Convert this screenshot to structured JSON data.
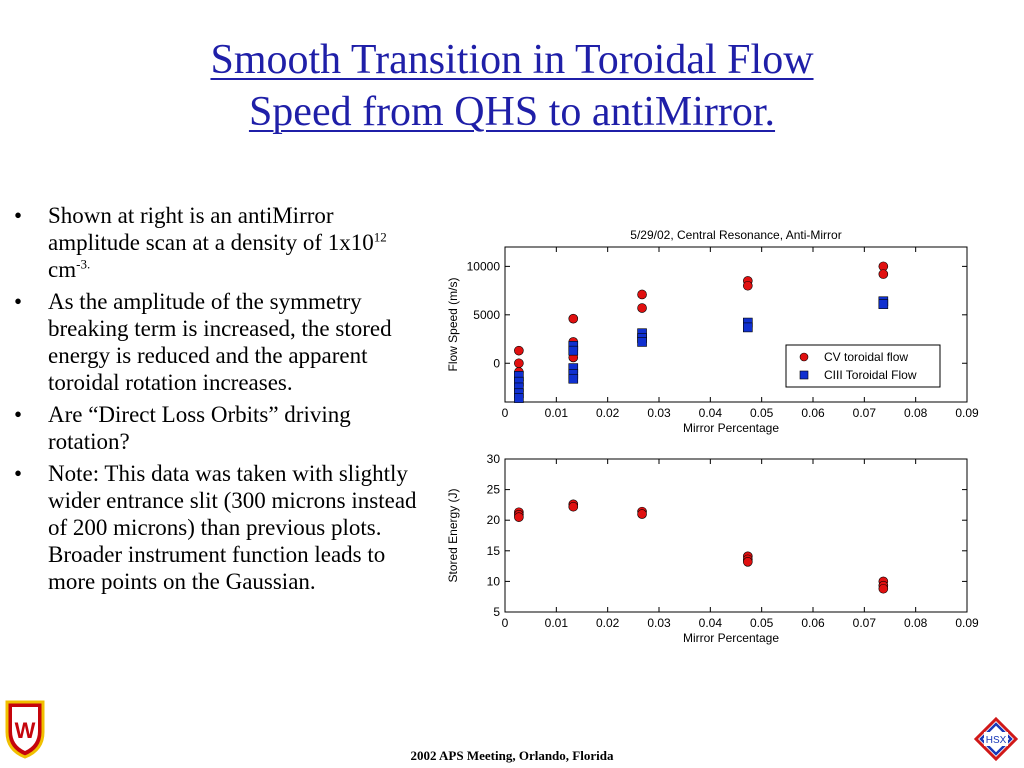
{
  "title": {
    "line1": "Smooth Transition in Toroidal Flow",
    "line2": "Speed from QHS to antiMirror."
  },
  "bullets": [
    {
      "text_before": "Shown at right is an antiMirror amplitude scan at a density of 1x10",
      "sup1": "12",
      "text_mid": " cm",
      "sup2": "-3."
    },
    {
      "text": "As the amplitude of the symmetry breaking term is increased, the stored energy is reduced and the apparent toroidal rotation increases."
    },
    {
      "text": "Are “Direct Loss Orbits” driving rotation?"
    },
    {
      "text": "Note: This data was taken with slightly wider entrance slit (300 microns instead of 200 microns) than previous plots. Broader instrument function leads to more points on the Gaussian."
    }
  ],
  "bullet_glyph": "•",
  "footer": "2002 APS Meeting, Orlando, Florida",
  "logos": {
    "left": "W",
    "right": "HSX"
  },
  "colors": {
    "title": "#1f1fa8",
    "red_marker": "#e01010",
    "blue_marker": "#1030d0"
  },
  "chart_data": [
    {
      "type": "scatter",
      "title": "5/29/02, Central Resonance, Anti-Mirror",
      "xlabel": "Mirror Percentage",
      "ylabel": "Flow Speed (m/s)",
      "xlim": [
        0,
        0.09
      ],
      "ylim": [
        -4000,
        12000
      ],
      "xticks": [
        0,
        0.01,
        0.02,
        0.03,
        0.04,
        0.05,
        0.06,
        0.07,
        0.08,
        0.09
      ],
      "xtick_labels": [
        "0",
        "0.01",
        "0.02",
        "0.03",
        "0.04",
        "0.05",
        "0.06",
        "0.07",
        "0.08",
        "0.09"
      ],
      "yticks": [
        0,
        5000,
        10000
      ],
      "ytick_labels": [
        "0",
        "5000",
        "10000"
      ],
      "legend": "right",
      "series": [
        {
          "name": "CV toroidal flow",
          "marker": "circle",
          "color": "#e01010",
          "points": [
            [
              0.0027,
              1300
            ],
            [
              0.0027,
              0
            ],
            [
              0.0027,
              -900
            ],
            [
              0.0027,
              -1800
            ],
            [
              0.0133,
              4600
            ],
            [
              0.0133,
              2200
            ],
            [
              0.0133,
              600
            ],
            [
              0.0267,
              7100
            ],
            [
              0.0267,
              5700
            ],
            [
              0.0473,
              8500
            ],
            [
              0.0473,
              8000
            ],
            [
              0.0737,
              10000
            ],
            [
              0.0737,
              9200
            ]
          ]
        },
        {
          "name": "CIII Toroidal Flow",
          "marker": "square",
          "color": "#1030d0",
          "points": [
            [
              0.0027,
              -1300
            ],
            [
              0.0027,
              -1900
            ],
            [
              0.0027,
              -2500
            ],
            [
              0.0027,
              -3100
            ],
            [
              0.0027,
              -3600
            ],
            [
              0.0133,
              1800
            ],
            [
              0.0133,
              1300
            ],
            [
              0.0133,
              -500
            ],
            [
              0.0133,
              -1100
            ],
            [
              0.0133,
              -1600
            ],
            [
              0.0267,
              3100
            ],
            [
              0.0267,
              2600
            ],
            [
              0.0267,
              2200
            ],
            [
              0.0473,
              4200
            ],
            [
              0.0473,
              3700
            ],
            [
              0.0737,
              6400
            ],
            [
              0.0737,
              6100
            ]
          ]
        }
      ]
    },
    {
      "type": "scatter",
      "title": "",
      "xlabel": "Mirror Percentage",
      "ylabel": "Stored Energy (J)",
      "xlim": [
        0,
        0.09
      ],
      "ylim": [
        5,
        30
      ],
      "xticks": [
        0,
        0.01,
        0.02,
        0.03,
        0.04,
        0.05,
        0.06,
        0.07,
        0.08,
        0.09
      ],
      "xtick_labels": [
        "0",
        "0.01",
        "0.02",
        "0.03",
        "0.04",
        "0.05",
        "0.06",
        "0.07",
        "0.08",
        "0.09"
      ],
      "yticks": [
        5,
        10,
        15,
        20,
        25,
        30
      ],
      "ytick_labels": [
        "5",
        "10",
        "15",
        "20",
        "25",
        "30"
      ],
      "series": [
        {
          "marker": "circle",
          "color": "#e01010",
          "points": [
            [
              0.0027,
              21.3
            ],
            [
              0.0027,
              20.9
            ],
            [
              0.0027,
              20.5
            ],
            [
              0.0133,
              22.6
            ],
            [
              0.0133,
              22.2
            ],
            [
              0.0267,
              21.4
            ],
            [
              0.0267,
              21.0
            ],
            [
              0.0473,
              14.1
            ],
            [
              0.0473,
              13.6
            ],
            [
              0.0473,
              13.2
            ],
            [
              0.0737,
              10.0
            ],
            [
              0.0737,
              9.3
            ],
            [
              0.0737,
              8.8
            ]
          ]
        }
      ]
    }
  ]
}
